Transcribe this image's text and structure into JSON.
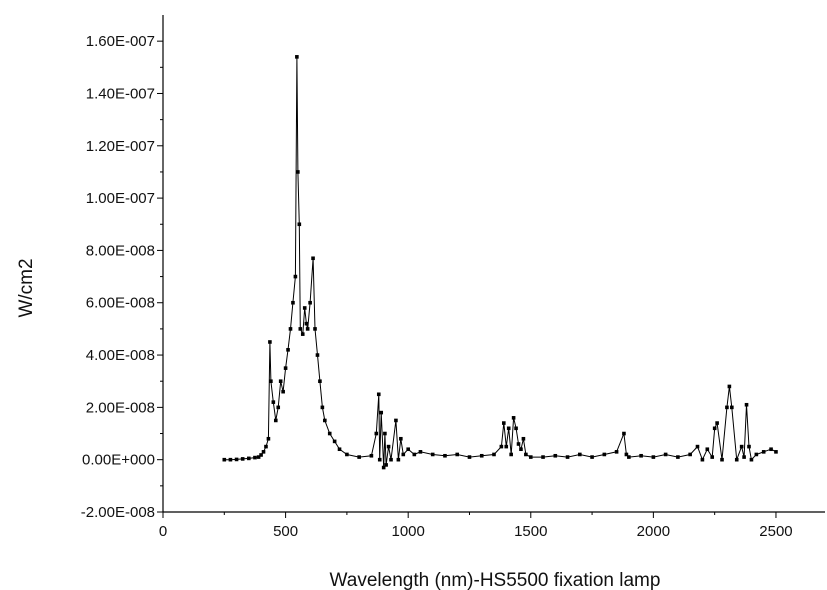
{
  "chart_data": {
    "type": "line",
    "title": "",
    "xlabel": "Wavelength (nm)-HS5500 fixation lamp",
    "ylabel": "W/cm2",
    "xlim": [
      0,
      2700
    ],
    "ylim": [
      -2e-08,
      1.7e-07
    ],
    "x_ticks": [
      0,
      500,
      1000,
      1500,
      2000,
      2500
    ],
    "x_tick_labels": [
      "0",
      "500",
      "1000",
      "1500",
      "2000",
      "2500"
    ],
    "y_ticks": [
      -2e-08,
      0,
      2e-08,
      4e-08,
      6e-08,
      8e-08,
      1e-07,
      1.2e-07,
      1.4e-07,
      1.6e-07
    ],
    "y_tick_labels": [
      "-2.00E-008",
      "0.00E+000",
      "2.00E-008",
      "4.00E-008",
      "6.00E-008",
      "8.00E-008",
      "1.00E-007",
      "1.20E-007",
      "1.40E-007",
      "1.60E-007"
    ],
    "grid": false,
    "legend": "none",
    "series": [
      {
        "marker": "square",
        "color": "#000000",
        "x": [
          250,
          275,
          300,
          325,
          350,
          375,
          390,
          400,
          410,
          420,
          430,
          436,
          440,
          450,
          460,
          470,
          480,
          490,
          500,
          510,
          520,
          530,
          540,
          546,
          550,
          556,
          560,
          570,
          578,
          585,
          590,
          600,
          612,
          620,
          630,
          640,
          650,
          660,
          680,
          700,
          720,
          750,
          800,
          850,
          870,
          880,
          884,
          890,
          900,
          905,
          910,
          920,
          930,
          950,
          960,
          970,
          980,
          1000,
          1025,
          1050,
          1100,
          1150,
          1200,
          1250,
          1300,
          1350,
          1380,
          1390,
          1400,
          1410,
          1420,
          1430,
          1440,
          1450,
          1460,
          1470,
          1480,
          1500,
          1550,
          1600,
          1650,
          1700,
          1750,
          1800,
          1850,
          1880,
          1890,
          1900,
          1950,
          2000,
          2050,
          2100,
          2150,
          2180,
          2200,
          2220,
          2240,
          2250,
          2260,
          2280,
          2300,
          2310,
          2320,
          2340,
          2360,
          2370,
          2380,
          2390,
          2400,
          2420,
          2450,
          2480,
          2500
        ],
        "y": [
          0,
          0,
          1e-10,
          3e-10,
          5e-10,
          8e-10,
          1e-09,
          1.8e-09,
          3e-09,
          5e-09,
          8e-09,
          4.5e-08,
          3e-08,
          2.2e-08,
          1.5e-08,
          2e-08,
          3e-08,
          2.6e-08,
          3.5e-08,
          4.2e-08,
          5e-08,
          6e-08,
          7e-08,
          1.54e-07,
          1.1e-07,
          9e-08,
          5e-08,
          4.8e-08,
          5.8e-08,
          5.2e-08,
          5e-08,
          6e-08,
          7.7e-08,
          5e-08,
          4e-08,
          3e-08,
          2e-08,
          1.5e-08,
          1e-08,
          7e-09,
          4e-09,
          2e-09,
          1e-09,
          1.5e-09,
          1e-08,
          2.5e-08,
          0,
          1.8e-08,
          -3e-09,
          1e-08,
          -2e-09,
          5e-09,
          0,
          1.5e-08,
          0,
          8e-09,
          2e-09,
          4e-09,
          2e-09,
          3e-09,
          2e-09,
          1.5e-09,
          2e-09,
          1e-09,
          1.5e-09,
          2e-09,
          5e-09,
          1.4e-08,
          5e-09,
          1.2e-08,
          2e-09,
          1.6e-08,
          1.2e-08,
          6e-09,
          4e-09,
          8e-09,
          2e-09,
          1e-09,
          1e-09,
          1.5e-09,
          1e-09,
          2e-09,
          1e-09,
          2e-09,
          3e-09,
          1e-08,
          2e-09,
          1e-09,
          1.5e-09,
          1e-09,
          2e-09,
          1e-09,
          2e-09,
          5e-09,
          0,
          4e-09,
          1e-09,
          1.2e-08,
          1.4e-08,
          0,
          2e-08,
          2.8e-08,
          2e-08,
          0,
          5e-09,
          1e-09,
          2.1e-08,
          5e-09,
          0,
          2e-09,
          3e-09,
          4e-09,
          3e-09
        ]
      }
    ]
  }
}
